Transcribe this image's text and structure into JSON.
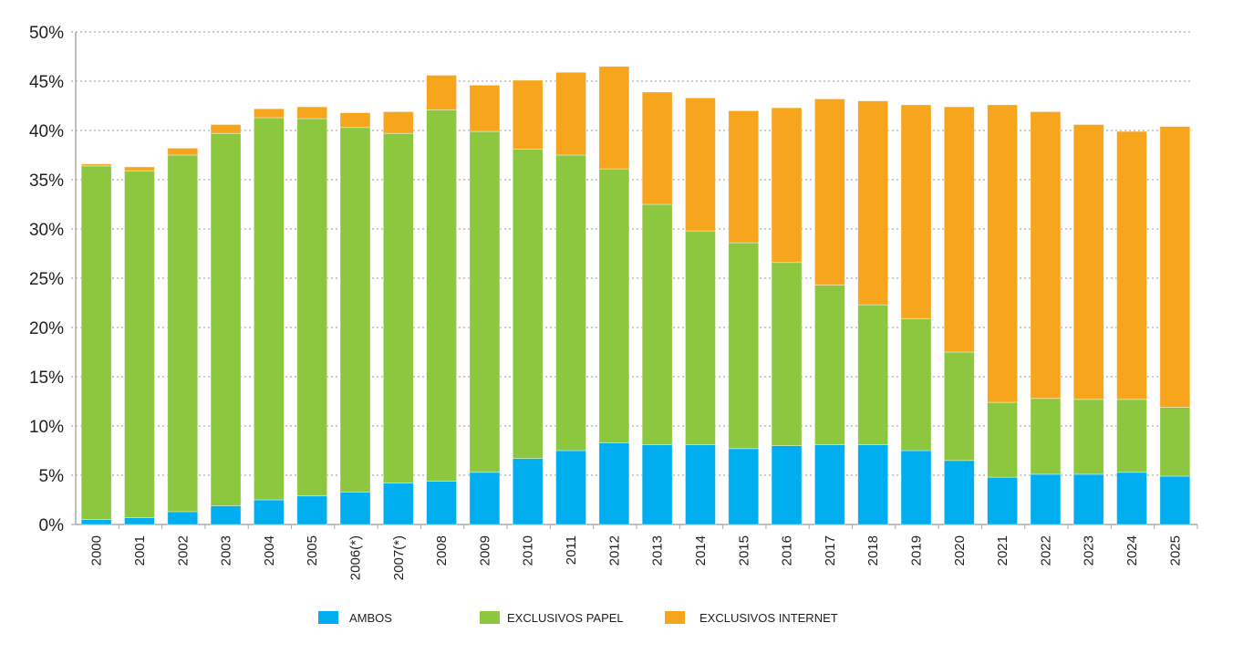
{
  "chart_data": {
    "type": "bar",
    "stacked": true,
    "title": "",
    "xlabel": "",
    "ylabel": "",
    "ylim": [
      0,
      50
    ],
    "yticks": [
      "0%",
      "5%",
      "10%",
      "15%",
      "20%",
      "25%",
      "30%",
      "35%",
      "40%",
      "45%",
      "50%"
    ],
    "grid": true,
    "legend_position": "bottom",
    "categories": [
      "2000",
      "2001",
      "2002",
      "2003",
      "2004",
      "2005",
      "2006(*)",
      "2007(*)",
      "2008",
      "2009",
      "2010",
      "2011",
      "2012",
      "2013",
      "2014",
      "2015",
      "2016",
      "2017",
      "2018",
      "2019",
      "2020",
      "2021",
      "2022",
      "2023",
      "2024",
      "2025"
    ],
    "series": [
      {
        "name": "AMBOS",
        "color": "#00aeef",
        "values": [
          0.5,
          0.7,
          1.3,
          1.9,
          2.5,
          2.9,
          3.3,
          4.2,
          4.4,
          5.3,
          6.7,
          7.5,
          8.3,
          8.1,
          8.1,
          7.7,
          8.0,
          8.1,
          8.1,
          7.5,
          6.5,
          4.8,
          5.1,
          5.1,
          5.3,
          4.9
        ]
      },
      {
        "name": "EXCLUSIVOS PAPEL",
        "color": "#8dc63f",
        "values": [
          35.9,
          35.2,
          36.2,
          37.8,
          38.8,
          38.3,
          37.0,
          35.5,
          37.7,
          34.6,
          31.4,
          30.0,
          27.8,
          24.4,
          21.7,
          20.9,
          18.6,
          16.2,
          14.2,
          13.4,
          11.0,
          7.6,
          7.7,
          7.6,
          7.4,
          7.0
        ]
      },
      {
        "name": "EXCLUSIVOS INTERNET",
        "color": "#f7a51d",
        "values": [
          0.2,
          0.4,
          0.7,
          0.9,
          0.9,
          1.2,
          1.5,
          2.2,
          3.5,
          4.7,
          7.0,
          8.4,
          10.4,
          11.4,
          13.5,
          13.4,
          15.7,
          18.9,
          20.7,
          21.7,
          24.9,
          30.2,
          29.1,
          27.9,
          27.2,
          28.5
        ]
      }
    ]
  }
}
